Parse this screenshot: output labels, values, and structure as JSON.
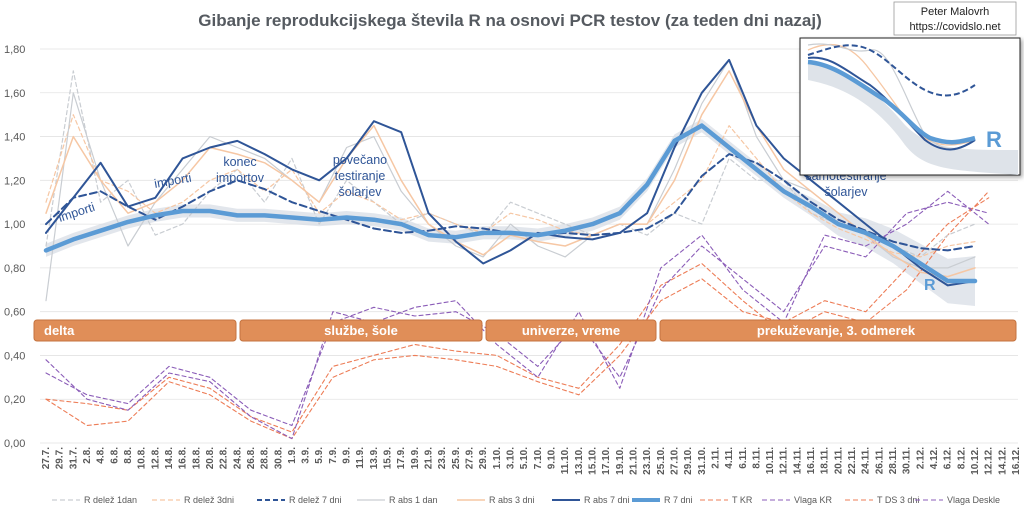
{
  "chart_data": {
    "type": "line",
    "title": "Gibanje reprodukcijskega števila R na osnovi PCR testov (za teden dni nazaj)",
    "credit": [
      "Peter Malovrh",
      "https://covidslo.net"
    ],
    "ylim": [
      0,
      1.8
    ],
    "yticks": [
      "0,00",
      "0,20",
      "0,40",
      "0,60",
      "0,80",
      "1,00",
      "1,20",
      "1,40",
      "1,60",
      "1,80"
    ],
    "xticks": [
      "27.7.",
      "29.7.",
      "31.7.",
      "2.8.",
      "4.8.",
      "6.8.",
      "8.8.",
      "10.8.",
      "12.8.",
      "14.8.",
      "16.8.",
      "18.8.",
      "20.8.",
      "22.8.",
      "24.8.",
      "26.8.",
      "28.8.",
      "30.8.",
      "1.9.",
      "3.9.",
      "5.9.",
      "7.9.",
      "9.9.",
      "11.9.",
      "13.9.",
      "15.9.",
      "17.9.",
      "19.9.",
      "21.9.",
      "23.9.",
      "25.9.",
      "27.9.",
      "29.9.",
      "1.10.",
      "3.10.",
      "5.10.",
      "7.10.",
      "9.10.",
      "11.10.",
      "13.10.",
      "15.10.",
      "17.10.",
      "19.10.",
      "21.10.",
      "23.10.",
      "25.10.",
      "27.10.",
      "29.10.",
      "31.10.",
      "2.11.",
      "4.11.",
      "6.11.",
      "8.11.",
      "10.11.",
      "12.11.",
      "14.11.",
      "16.11.",
      "18.11.",
      "20.11.",
      "22.11.",
      "24.11.",
      "26.11.",
      "28.11.",
      "30.11.",
      "2.12.",
      "4.12.",
      "6.12.",
      "8.12.",
      "10.12.",
      "12.12.",
      "14.12.",
      "16.12."
    ],
    "phases": [
      "delta",
      "službe, šole",
      "univerze, vreme",
      "prekuževanje, 3. odmerek"
    ],
    "annotations": [
      "importi",
      "importi",
      "konec importov",
      "povečano testiranje šolarjev",
      "samotestiranje šolarjev",
      "R",
      "R"
    ],
    "series": [
      {
        "name": "R delež 1dan",
        "color": "#c9cdd2",
        "style": "dash",
        "width": 1.2,
        "x": [
          0,
          2,
          4,
          6,
          8,
          10,
          12,
          14,
          16,
          18,
          20,
          22,
          24,
          26,
          28,
          30,
          32,
          34,
          36,
          38,
          40,
          42,
          44,
          46,
          48,
          50,
          52,
          54,
          56,
          58,
          60,
          62,
          64,
          66,
          68
        ],
        "values": [
          0.9,
          1.7,
          1.1,
          1.2,
          0.95,
          1.0,
          1.15,
          1.25,
          1.1,
          1.3,
          1.0,
          1.2,
          1.1,
          1.0,
          1.05,
          1.0,
          0.95,
          1.1,
          1.05,
          1.0,
          0.95,
          1.0,
          0.95,
          1.05,
          1.0,
          1.3,
          1.2,
          1.2,
          1.05,
          1.0,
          0.95,
          0.9,
          0.85,
          0.95,
          1.0
        ]
      },
      {
        "name": "R delež 3dni",
        "color": "#f6c7a4",
        "style": "dash",
        "width": 1.2,
        "x": [
          0,
          2,
          4,
          6,
          8,
          10,
          12,
          14,
          16,
          18,
          20,
          22,
          24,
          26,
          28,
          30,
          32,
          34,
          36,
          38,
          40,
          42,
          44,
          46,
          48,
          50,
          52,
          54,
          56,
          58,
          60,
          62,
          64,
          66,
          68
        ],
        "values": [
          1.1,
          1.5,
          1.2,
          1.15,
          1.05,
          1.1,
          1.2,
          1.25,
          1.15,
          1.25,
          1.05,
          1.15,
          1.1,
          1.02,
          1.05,
          1.0,
          0.96,
          1.05,
          1.02,
          0.97,
          0.95,
          1.0,
          1.0,
          1.1,
          1.2,
          1.45,
          1.3,
          1.15,
          1.05,
          0.98,
          0.93,
          0.87,
          0.85,
          0.9,
          0.92
        ]
      },
      {
        "name": "R delež 7 dni",
        "color": "#2f5597",
        "style": "dash",
        "width": 2,
        "x": [
          0,
          2,
          4,
          6,
          8,
          10,
          12,
          14,
          16,
          18,
          20,
          22,
          24,
          26,
          28,
          30,
          32,
          34,
          36,
          38,
          40,
          42,
          44,
          46,
          48,
          50,
          52,
          54,
          56,
          58,
          60,
          62,
          64,
          66,
          68
        ],
        "values": [
          1.0,
          1.12,
          1.15,
          1.08,
          1.02,
          1.08,
          1.15,
          1.2,
          1.16,
          1.1,
          1.06,
          1.02,
          0.98,
          0.96,
          0.97,
          0.99,
          0.98,
          0.96,
          0.95,
          0.96,
          0.95,
          0.96,
          0.98,
          1.05,
          1.22,
          1.32,
          1.28,
          1.2,
          1.1,
          1.02,
          0.97,
          0.92,
          0.89,
          0.88,
          0.9
        ]
      },
      {
        "name": "R abs 1 dan",
        "color": "#c9cdd2",
        "style": "solid",
        "width": 1.2,
        "x": [
          0,
          2,
          4,
          6,
          8,
          10,
          12,
          14,
          16,
          18,
          20,
          22,
          24,
          26,
          28,
          30,
          32,
          34,
          36,
          38,
          40,
          42,
          44,
          46,
          48,
          50,
          52,
          54,
          56,
          58,
          60,
          62,
          64,
          66,
          68
        ],
        "values": [
          0.65,
          1.6,
          1.2,
          0.9,
          1.1,
          1.25,
          1.4,
          1.35,
          1.3,
          1.2,
          1.1,
          1.35,
          1.4,
          1.15,
          1.0,
          0.9,
          0.85,
          1.0,
          0.9,
          0.85,
          0.95,
          1.0,
          1.0,
          1.25,
          1.55,
          1.75,
          1.4,
          1.2,
          1.15,
          1.05,
          0.95,
          0.85,
          0.8,
          0.8,
          0.85
        ]
      },
      {
        "name": "R abs 3 dni",
        "color": "#f6c7a4",
        "style": "solid",
        "width": 1.5,
        "x": [
          0,
          2,
          4,
          6,
          8,
          10,
          12,
          14,
          16,
          18,
          20,
          22,
          24,
          26,
          28,
          30,
          32,
          34,
          36,
          38,
          40,
          42,
          44,
          46,
          48,
          50,
          52,
          54,
          56,
          58,
          60,
          62,
          64,
          66,
          68
        ],
        "values": [
          1.05,
          1.4,
          1.2,
          1.05,
          1.1,
          1.2,
          1.35,
          1.32,
          1.28,
          1.2,
          1.1,
          1.3,
          1.45,
          1.2,
          1.0,
          0.92,
          0.86,
          0.95,
          0.92,
          0.9,
          0.95,
          1.0,
          1.0,
          1.2,
          1.5,
          1.7,
          1.45,
          1.25,
          1.15,
          1.05,
          0.95,
          0.86,
          0.78,
          0.76,
          0.8
        ]
      },
      {
        "name": "R abs 7 dni",
        "color": "#2f5597",
        "style": "solid",
        "width": 2,
        "x": [
          0,
          2,
          4,
          6,
          8,
          10,
          12,
          14,
          16,
          18,
          20,
          22,
          24,
          26,
          28,
          30,
          32,
          34,
          36,
          38,
          40,
          42,
          44,
          46,
          48,
          50,
          52,
          54,
          56,
          58,
          60,
          62,
          64,
          66,
          68
        ],
        "values": [
          0.96,
          1.12,
          1.28,
          1.08,
          1.12,
          1.3,
          1.35,
          1.38,
          1.32,
          1.25,
          1.2,
          1.3,
          1.47,
          1.42,
          1.05,
          0.92,
          0.82,
          0.88,
          0.96,
          0.94,
          0.93,
          0.96,
          1.05,
          1.35,
          1.6,
          1.75,
          1.45,
          1.3,
          1.2,
          1.1,
          1.0,
          0.9,
          0.8,
          0.72,
          0.74
        ]
      },
      {
        "name": "R 7 dni",
        "color": "#5b9bd5",
        "style": "solid",
        "width": 4.5,
        "x": [
          0,
          2,
          4,
          6,
          8,
          10,
          12,
          14,
          16,
          18,
          20,
          22,
          24,
          26,
          28,
          30,
          32,
          34,
          36,
          38,
          40,
          42,
          44,
          46,
          48,
          50,
          52,
          54,
          56,
          58,
          60,
          62,
          64,
          66,
          68
        ],
        "values": [
          0.88,
          0.93,
          0.97,
          1.01,
          1.04,
          1.06,
          1.06,
          1.04,
          1.04,
          1.03,
          1.02,
          1.03,
          1.02,
          1.0,
          0.95,
          0.94,
          0.96,
          0.96,
          0.95,
          0.97,
          1.0,
          1.05,
          1.18,
          1.38,
          1.45,
          1.35,
          1.25,
          1.15,
          1.08,
          1.0,
          0.96,
          0.9,
          0.82,
          0.74,
          0.74
        ]
      },
      {
        "name": "T KR",
        "color": "#ed7d57",
        "style": "dash",
        "width": 1.1,
        "x": [
          0,
          3,
          6,
          9,
          12,
          15,
          18,
          21,
          24,
          27,
          30,
          33,
          36,
          39,
          42,
          45,
          48,
          51,
          54,
          57,
          60,
          63,
          66,
          69
        ],
        "values": [
          0.2,
          0.18,
          0.15,
          0.3,
          0.25,
          0.12,
          0.05,
          0.35,
          0.4,
          0.45,
          0.42,
          0.4,
          0.3,
          0.25,
          0.45,
          0.72,
          0.82,
          0.65,
          0.5,
          0.6,
          0.55,
          0.7,
          0.95,
          1.15
        ]
      },
      {
        "name": "Vlaga KR",
        "color": "#8b5db8",
        "style": "dash",
        "width": 1.1,
        "x": [
          0,
          3,
          6,
          9,
          12,
          15,
          18,
          21,
          24,
          27,
          30,
          33,
          36,
          39,
          42,
          45,
          48,
          51,
          54,
          57,
          60,
          63,
          66,
          69
        ],
        "values": [
          0.32,
          0.22,
          0.18,
          0.35,
          0.3,
          0.15,
          0.08,
          0.55,
          0.62,
          0.58,
          0.6,
          0.5,
          0.35,
          0.55,
          0.3,
          0.7,
          0.9,
          0.75,
          0.6,
          0.9,
          0.85,
          1.05,
          1.1,
          1.05
        ]
      },
      {
        "name": "T DS 3 dni",
        "color": "#ed7d57",
        "style": "dash",
        "width": 1.1,
        "x": [
          0,
          3,
          6,
          9,
          12,
          15,
          18,
          21,
          24,
          27,
          30,
          33,
          36,
          39,
          42,
          45,
          48,
          51,
          54,
          57,
          60,
          63,
          66,
          69
        ],
        "values": [
          0.2,
          0.08,
          0.1,
          0.28,
          0.22,
          0.1,
          0.02,
          0.3,
          0.38,
          0.4,
          0.38,
          0.35,
          0.28,
          0.22,
          0.4,
          0.65,
          0.75,
          0.6,
          0.55,
          0.65,
          0.6,
          0.8,
          1.0,
          1.12
        ]
      },
      {
        "name": "Vlaga Deskle",
        "color": "#8b5db8",
        "style": "dash",
        "width": 1.1,
        "x": [
          0,
          3,
          6,
          9,
          12,
          15,
          18,
          21,
          24,
          27,
          30,
          33,
          36,
          39,
          42,
          45,
          48,
          51,
          54,
          57,
          60,
          63,
          66,
          69
        ],
        "values": [
          0.38,
          0.2,
          0.15,
          0.32,
          0.28,
          0.12,
          0.02,
          0.6,
          0.55,
          0.62,
          0.65,
          0.45,
          0.3,
          0.6,
          0.25,
          0.8,
          0.95,
          0.7,
          0.55,
          0.95,
          0.9,
          1.0,
          1.15,
          1.0
        ]
      }
    ]
  }
}
